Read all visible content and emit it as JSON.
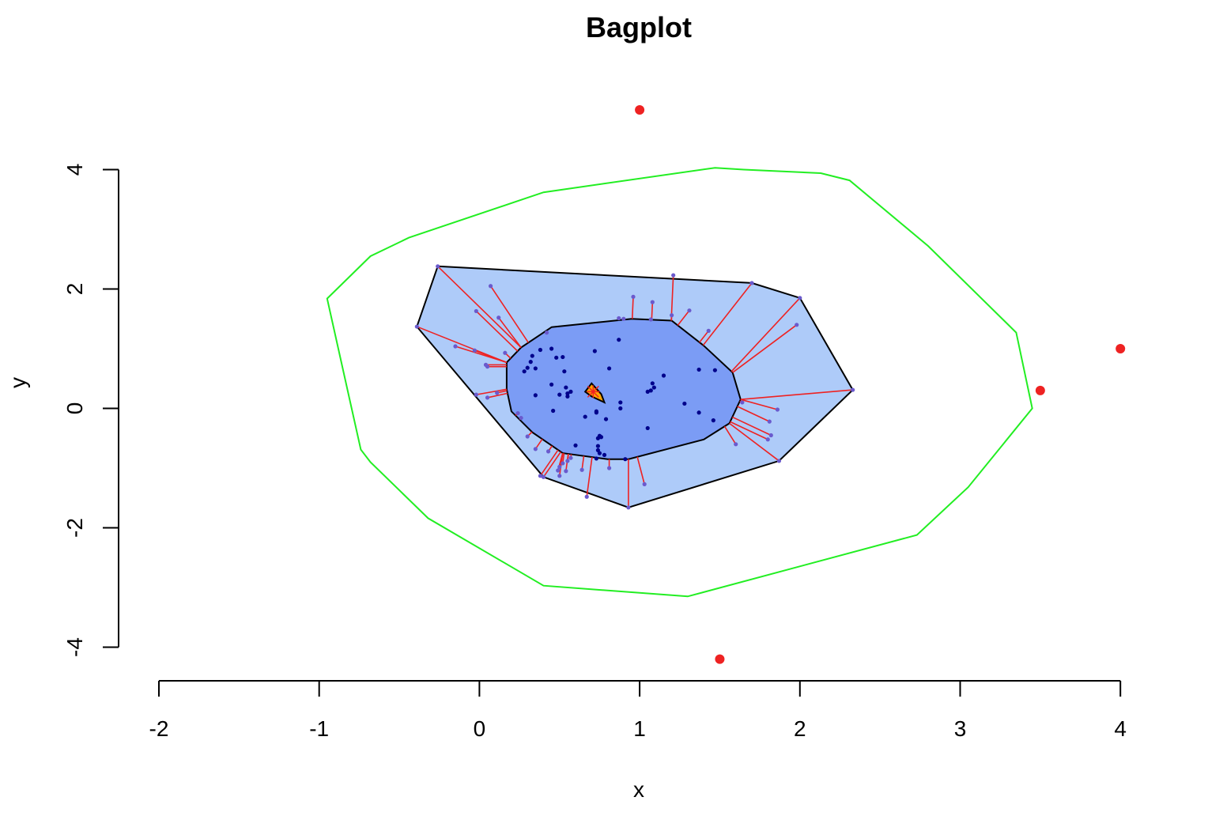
{
  "chart_data": {
    "type": "scatter",
    "subtype": "bagplot",
    "title": "Bagplot",
    "xlabel": "x",
    "ylabel": "y",
    "xlim": [
      -2,
      4
    ],
    "ylim": [
      -4,
      4
    ],
    "x_ticks": [
      "-2",
      "-1",
      "0",
      "1",
      "2",
      "3",
      "4"
    ],
    "y_ticks": [
      "-4",
      "-2",
      "0",
      "2",
      "4"
    ],
    "colors": {
      "bag_fill": "#7b9cf5",
      "loop_fill": "#aecbf9",
      "fence": "#22ee22",
      "spokes": "#ee2222",
      "outliers": "#ee2222",
      "center": "#ffa500",
      "bag_points": "#00008b",
      "loop_points": "#6a5acd"
    },
    "fence": [
      [
        1.47,
        4.03
      ],
      [
        1.65,
        4.0
      ],
      [
        2.13,
        3.94
      ],
      [
        2.31,
        3.82
      ],
      [
        2.8,
        2.72
      ],
      [
        3.35,
        1.27
      ],
      [
        3.45,
        0.0
      ],
      [
        3.05,
        -1.32
      ],
      [
        2.73,
        -2.12
      ],
      [
        1.3,
        -3.15
      ],
      [
        0.4,
        -2.97
      ],
      [
        -0.32,
        -1.84
      ],
      [
        -0.68,
        -0.9
      ],
      [
        -0.74,
        -0.69
      ],
      [
        -0.95,
        1.84
      ],
      [
        -0.68,
        2.55
      ],
      [
        -0.44,
        2.86
      ],
      [
        0.4,
        3.62
      ]
    ],
    "loop": [
      [
        -0.26,
        2.38
      ],
      [
        1.7,
        2.1
      ],
      [
        2.0,
        1.85
      ],
      [
        2.33,
        0.31
      ],
      [
        1.87,
        -0.88
      ],
      [
        0.93,
        -1.66
      ],
      [
        0.4,
        -1.15
      ],
      [
        -0.39,
        1.37
      ]
    ],
    "bag": [
      [
        0.45,
        1.36
      ],
      [
        0.95,
        1.5
      ],
      [
        1.2,
        1.47
      ],
      [
        1.4,
        1.05
      ],
      [
        1.58,
        0.6
      ],
      [
        1.63,
        0.15
      ],
      [
        1.56,
        -0.25
      ],
      [
        1.4,
        -0.52
      ],
      [
        0.93,
        -0.85
      ],
      [
        0.8,
        -0.85
      ],
      [
        0.52,
        -0.75
      ],
      [
        0.33,
        -0.4
      ],
      [
        0.2,
        -0.05
      ],
      [
        0.17,
        0.32
      ],
      [
        0.17,
        0.77
      ],
      [
        0.26,
        1.02
      ]
    ],
    "center_region": [
      [
        0.66,
        0.28
      ],
      [
        0.7,
        0.42
      ],
      [
        0.76,
        0.24
      ],
      [
        0.78,
        0.1
      ],
      [
        0.7,
        0.2
      ]
    ],
    "center": [
      0.71,
      0.28
    ],
    "outliers": [
      [
        1.0,
        5.0
      ],
      [
        3.5,
        0.3
      ],
      [
        4.0,
        1.0
      ],
      [
        1.5,
        -4.2
      ]
    ],
    "bag_points": [
      [
        0.38,
        0.98
      ],
      [
        0.45,
        1.0
      ],
      [
        0.33,
        0.88
      ],
      [
        0.32,
        0.78
      ],
      [
        0.48,
        0.85
      ],
      [
        0.52,
        0.86
      ],
      [
        0.72,
        0.96
      ],
      [
        0.87,
        1.15
      ],
      [
        0.3,
        0.68
      ],
      [
        0.28,
        0.62
      ],
      [
        0.35,
        0.67
      ],
      [
        0.53,
        0.62
      ],
      [
        0.81,
        0.67
      ],
      [
        1.15,
        0.55
      ],
      [
        1.37,
        0.65
      ],
      [
        1.47,
        0.64
      ],
      [
        1.08,
        0.42
      ],
      [
        1.09,
        0.35
      ],
      [
        1.07,
        0.3
      ],
      [
        1.05,
        0.28
      ],
      [
        0.35,
        0.22
      ],
      [
        0.45,
        0.4
      ],
      [
        0.54,
        0.35
      ],
      [
        0.55,
        0.25
      ],
      [
        0.57,
        0.28
      ],
      [
        0.5,
        0.23
      ],
      [
        0.55,
        0.2
      ],
      [
        0.88,
        0.1
      ],
      [
        0.88,
        0.0
      ],
      [
        1.28,
        0.08
      ],
      [
        1.37,
        -0.07
      ],
      [
        0.46,
        -0.04
      ],
      [
        0.73,
        -0.05
      ],
      [
        0.73,
        -0.07
      ],
      [
        0.66,
        -0.14
      ],
      [
        0.79,
        -0.18
      ],
      [
        1.05,
        -0.33
      ],
      [
        0.75,
        -0.46
      ],
      [
        0.74,
        -0.5
      ],
      [
        0.76,
        -0.48
      ],
      [
        0.6,
        -0.62
      ],
      [
        0.74,
        -0.63
      ],
      [
        0.74,
        -0.7
      ],
      [
        0.75,
        -0.75
      ],
      [
        0.78,
        -0.78
      ],
      [
        0.73,
        -0.84
      ],
      [
        0.91,
        -0.85
      ],
      [
        1.46,
        -0.2
      ]
    ],
    "loop_points": [
      [
        -0.26,
        2.38
      ],
      [
        0.07,
        2.05
      ],
      [
        1.21,
        2.23
      ],
      [
        1.7,
        2.1
      ],
      [
        2.0,
        1.85
      ],
      [
        0.96,
        1.87
      ],
      [
        1.08,
        1.78
      ],
      [
        1.2,
        1.56
      ],
      [
        1.31,
        1.64
      ],
      [
        0.87,
        1.51
      ],
      [
        0.9,
        1.5
      ],
      [
        1.07,
        1.49
      ],
      [
        1.43,
        1.3
      ],
      [
        1.98,
        1.4
      ],
      [
        -0.02,
        1.63
      ],
      [
        0.12,
        1.52
      ],
      [
        -0.39,
        1.37
      ],
      [
        0.42,
        1.27
      ],
      [
        -0.15,
        1.04
      ],
      [
        -0.03,
        0.97
      ],
      [
        0.16,
        0.93
      ],
      [
        0.04,
        0.73
      ],
      [
        0.05,
        0.7
      ],
      [
        2.33,
        0.31
      ],
      [
        1.64,
        0.1
      ],
      [
        1.86,
        -0.02
      ],
      [
        1.81,
        -0.22
      ],
      [
        1.82,
        -0.45
      ],
      [
        1.8,
        -0.52
      ],
      [
        1.6,
        -0.6
      ],
      [
        -0.02,
        0.23
      ],
      [
        0.11,
        0.26
      ],
      [
        0.05,
        0.18
      ],
      [
        0.24,
        -0.08
      ],
      [
        0.26,
        -0.16
      ],
      [
        0.3,
        -0.47
      ],
      [
        0.35,
        -0.68
      ],
      [
        0.43,
        -0.72
      ],
      [
        0.5,
        -0.98
      ],
      [
        0.54,
        -1.05
      ],
      [
        0.49,
        -1.04
      ],
      [
        0.5,
        -1.13
      ],
      [
        0.38,
        -1.13
      ],
      [
        0.4,
        -1.15
      ],
      [
        0.52,
        -0.92
      ],
      [
        0.55,
        -0.88
      ],
      [
        0.57,
        -0.83
      ],
      [
        0.64,
        -1.03
      ],
      [
        0.67,
        -1.48
      ],
      [
        0.93,
        -1.66
      ],
      [
        1.03,
        -1.27
      ],
      [
        0.81,
        -1.0
      ],
      [
        1.87,
        -0.88
      ]
    ],
    "grid": false,
    "legend": "none"
  }
}
